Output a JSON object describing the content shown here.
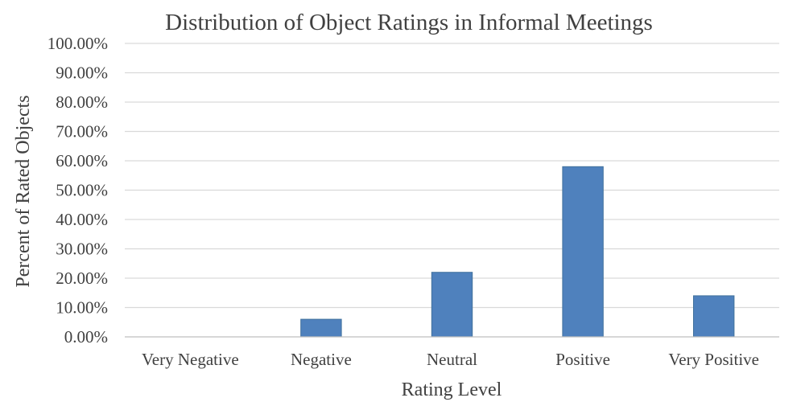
{
  "chart_data": {
    "type": "bar",
    "title": "Distribution of Object Ratings in Informal Meetings",
    "xlabel": "Rating Level",
    "ylabel": "Percent of Rated Objects",
    "categories": [
      "Very Negative",
      "Negative",
      "Neutral",
      "Positive",
      "Very Positive"
    ],
    "values": [
      0,
      6,
      22,
      58,
      14
    ],
    "ylim": [
      0,
      100
    ],
    "y_ticks": [
      "0.00%",
      "10.00%",
      "20.00%",
      "30.00%",
      "40.00%",
      "50.00%",
      "60.00%",
      "70.00%",
      "80.00%",
      "90.00%",
      "100.00%"
    ],
    "grid": true,
    "legend": "none",
    "bar_color": "#4f81bd",
    "bar_edge_color": "#41719c"
  }
}
